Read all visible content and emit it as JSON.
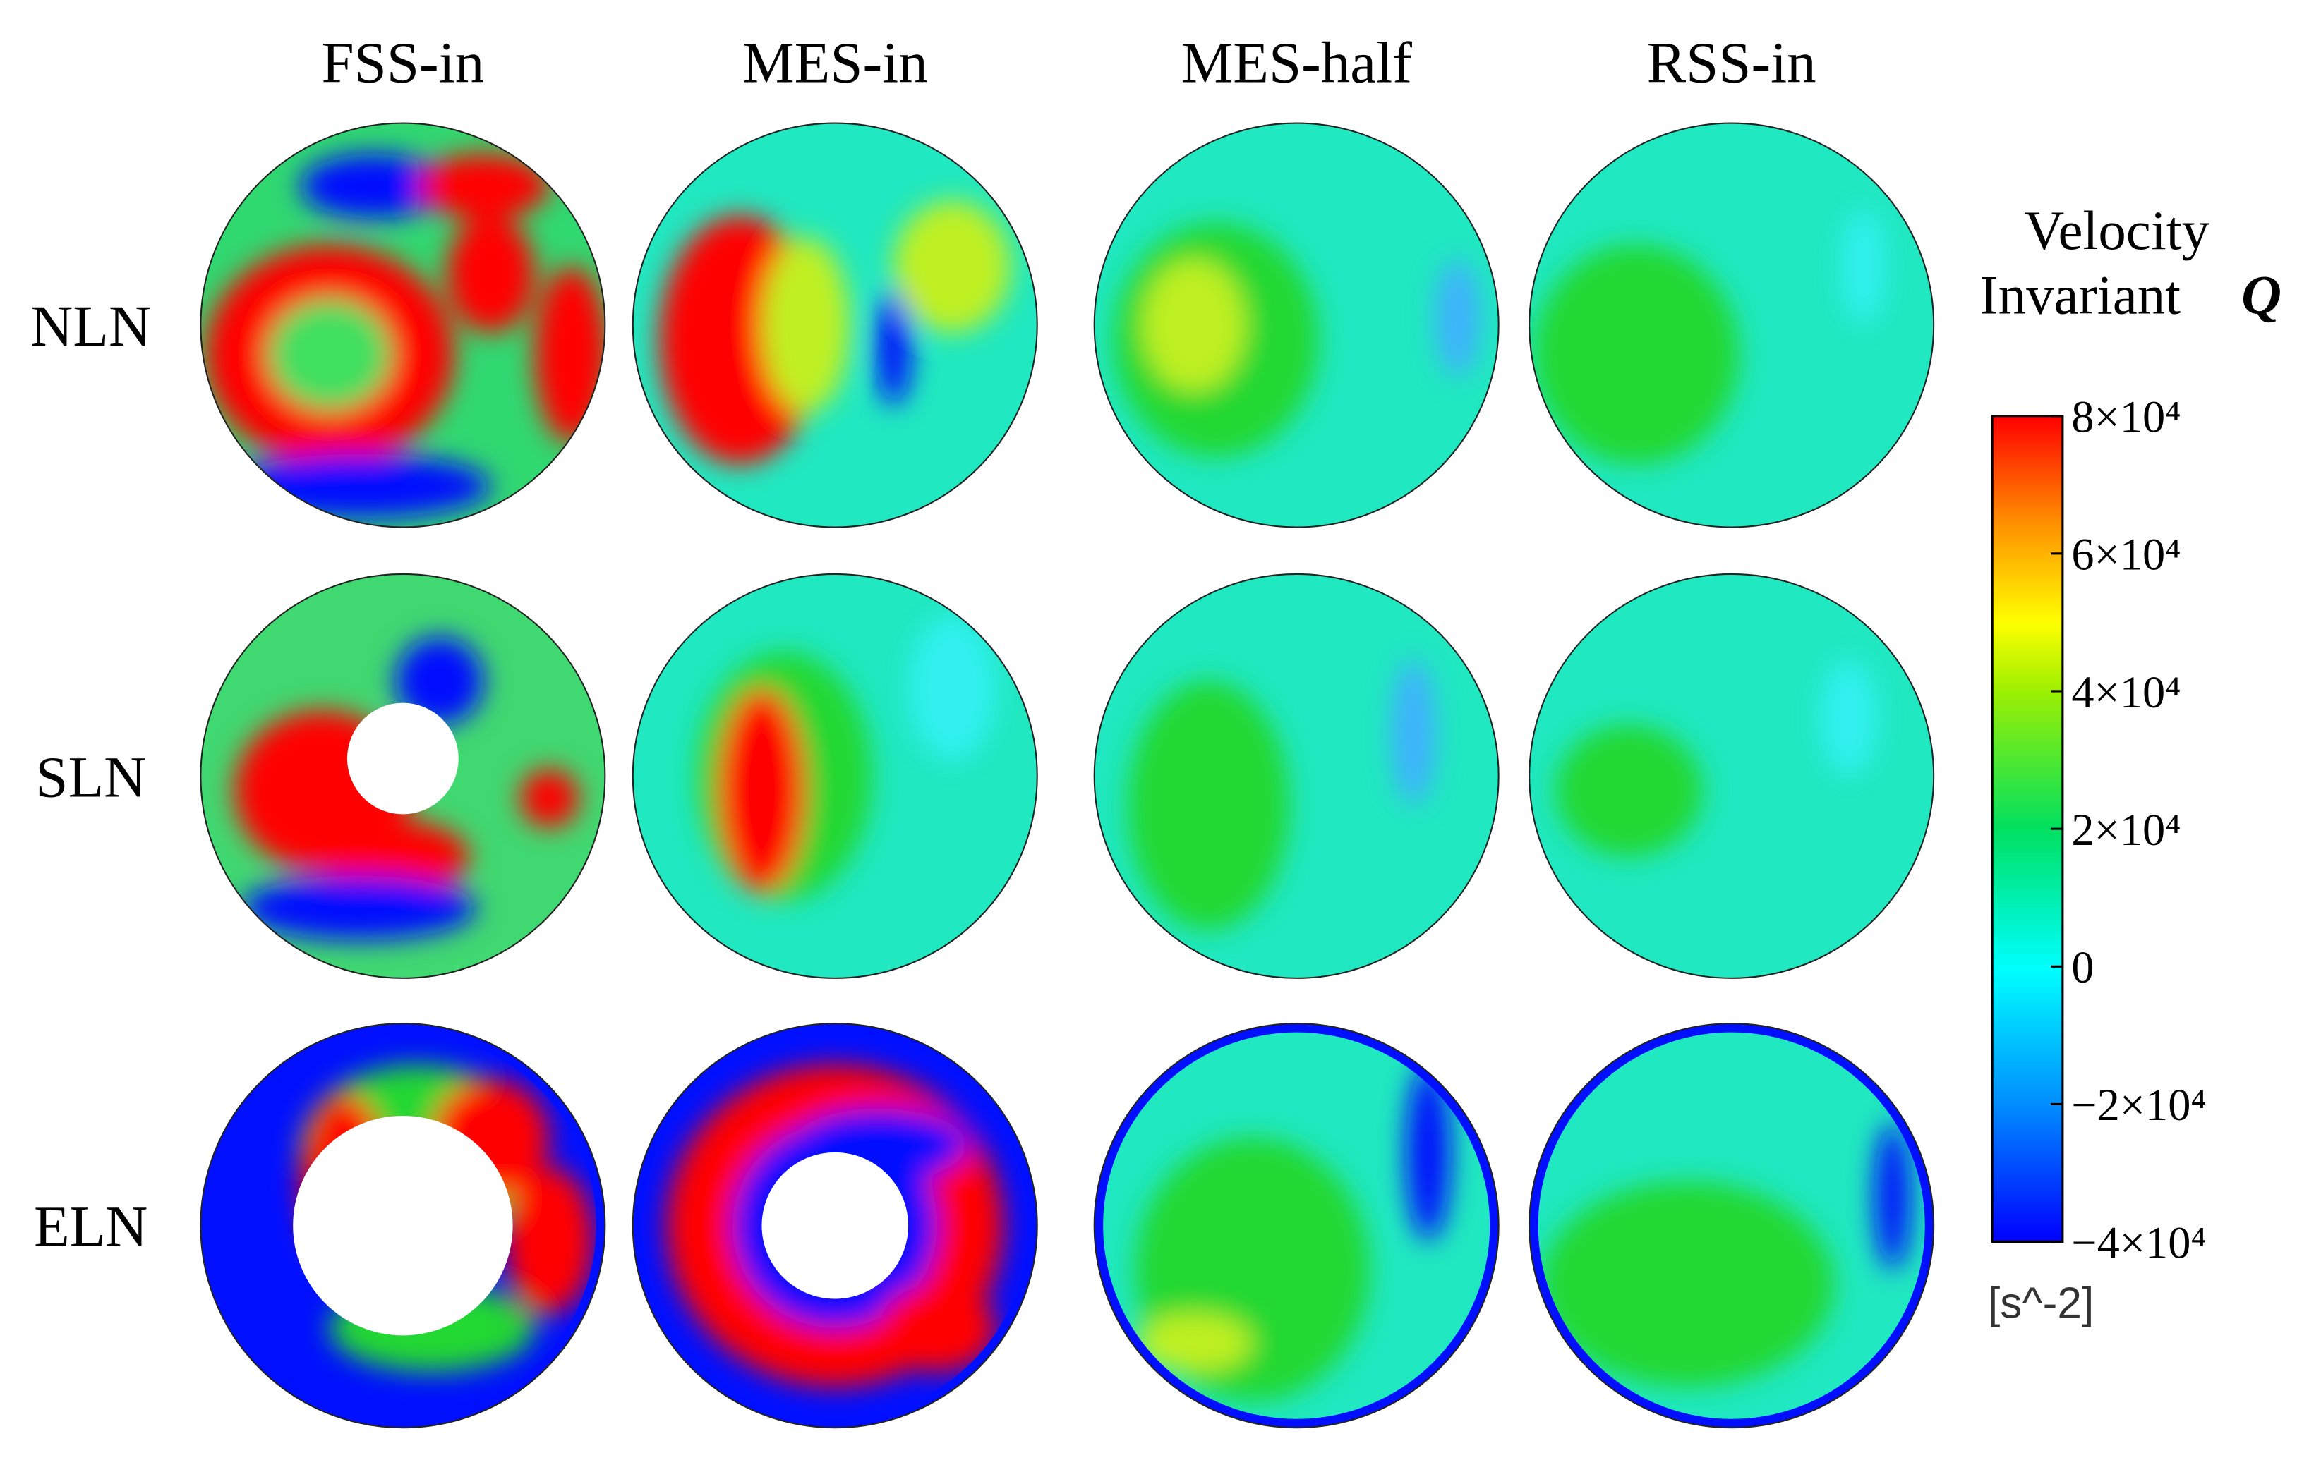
{
  "columns": [
    "FSS-in",
    "MES-in",
    "MES-half",
    "RSS-in"
  ],
  "rows": [
    "NLN",
    "SLN",
    "ELN"
  ],
  "colorbar": {
    "title": [
      "Velocity",
      "Invariant"
    ],
    "symbol": "Q",
    "range": [
      -40000,
      80000
    ],
    "ticks": [
      {
        "value": 80000,
        "label": "8×10⁴"
      },
      {
        "value": 60000,
        "label": "6×10⁴"
      },
      {
        "value": 40000,
        "label": "4×10⁴"
      },
      {
        "value": 20000,
        "label": "2×10⁴"
      },
      0,
      {
        "value": -20000,
        "label": "−2×10⁴"
      },
      {
        "value": -40000,
        "label": "−4×10⁴"
      }
    ],
    "unit": "[s^-2]"
  }
}
